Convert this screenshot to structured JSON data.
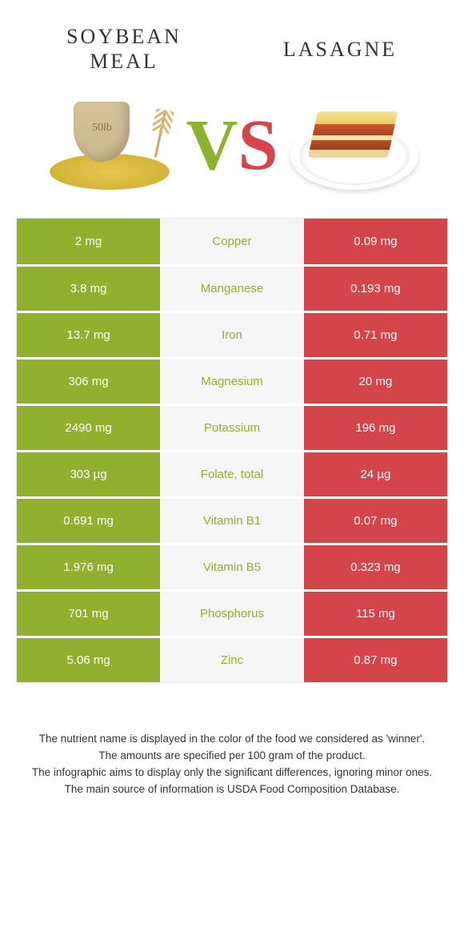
{
  "colors": {
    "left_food": "#8fb12f",
    "right_food": "#d3454b",
    "mid_bg": "#f5f5f5",
    "cell_text": "#ffffff",
    "border": "#e9e9e9",
    "body_text": "#333333"
  },
  "left_food": {
    "name": "SOYBEAN\nMEAL"
  },
  "right_food": {
    "name": "LASAGNE"
  },
  "vs": {
    "v": "V",
    "s": "S"
  },
  "rows": [
    {
      "left": "2 mg",
      "nutrient": "Copper",
      "right": "0.09 mg",
      "winner": "left"
    },
    {
      "left": "3.8 mg",
      "nutrient": "Manganese",
      "right": "0.193 mg",
      "winner": "left"
    },
    {
      "left": "13.7 mg",
      "nutrient": "Iron",
      "right": "0.71 mg",
      "winner": "left"
    },
    {
      "left": "306 mg",
      "nutrient": "Magnesium",
      "right": "20 mg",
      "winner": "left"
    },
    {
      "left": "2490 mg",
      "nutrient": "Potassium",
      "right": "196 mg",
      "winner": "left"
    },
    {
      "left": "303 µg",
      "nutrient": "Folate, total",
      "right": "24 µg",
      "winner": "left"
    },
    {
      "left": "0.691 mg",
      "nutrient": "Vitamin B1",
      "right": "0.07 mg",
      "winner": "left"
    },
    {
      "left": "1.976 mg",
      "nutrient": "Vitamin B5",
      "right": "0.323 mg",
      "winner": "left"
    },
    {
      "left": "701 mg",
      "nutrient": "Phosphorus",
      "right": "115 mg",
      "winner": "left"
    },
    {
      "left": "5.06 mg",
      "nutrient": "Zinc",
      "right": "0.87 mg",
      "winner": "left"
    }
  ],
  "footer": {
    "line1": "The nutrient name is displayed in the color of the food we considered as 'winner'.",
    "line2": "The amounts are specified per 100 gram of the product.",
    "line3": "The infographic aims to display only the significant differences, ignoring minor ones.",
    "line4": "The main source of information is USDA Food Composition Database."
  }
}
